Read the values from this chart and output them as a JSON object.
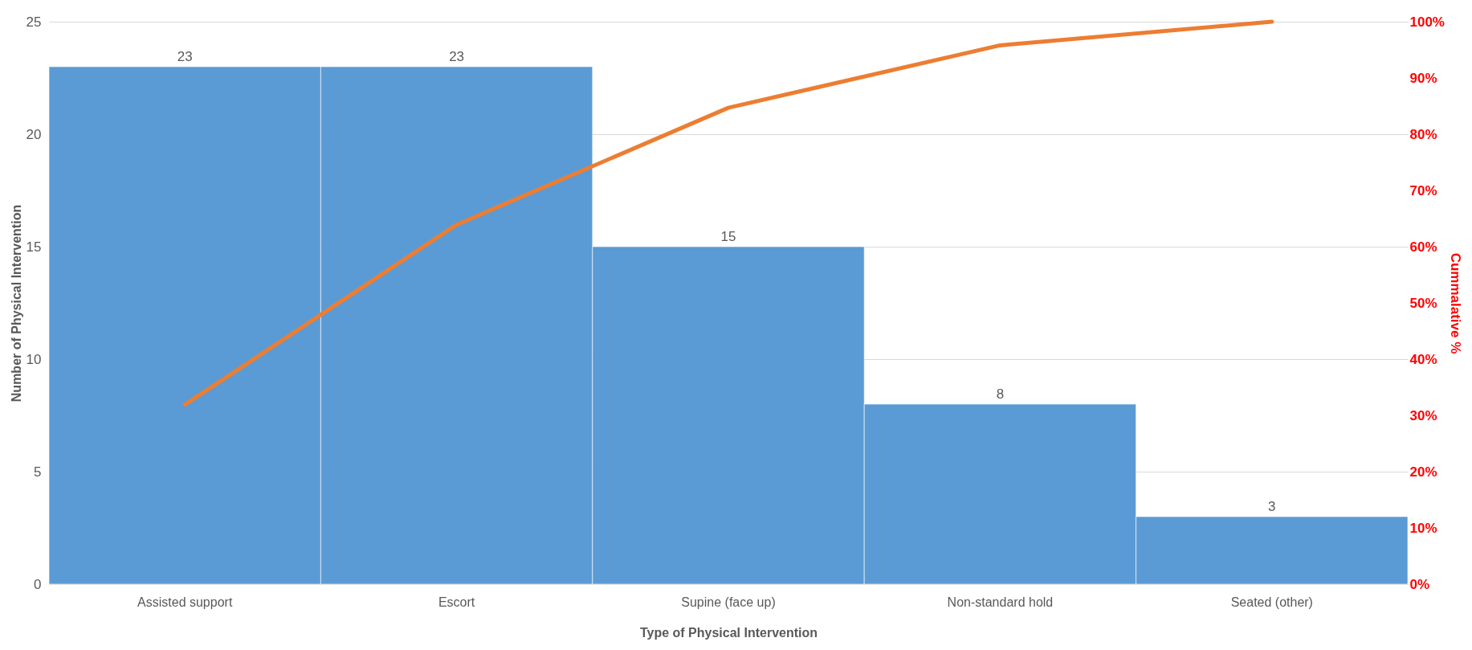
{
  "chart_data": {
    "type": "bar",
    "xlabel": "Type of Physical Intervention",
    "ylabel": "Number of Physical Intervention",
    "y2label": "Cummalative %",
    "categories": [
      "Assisted support",
      "Escort",
      "Supine (face up)",
      "Non-standard hold",
      "Seated (other)"
    ],
    "series": [
      {
        "color": "#5b9bd5",
        "values": [
          23,
          23,
          15,
          8,
          3
        ],
        "value_labels": [
          "23",
          "23",
          "15",
          "8",
          "3"
        ]
      },
      {
        "type": "line",
        "axis": "y2",
        "color": "#ed7d31",
        "values": [
          31.9,
          63.9,
          84.7,
          95.8,
          100
        ]
      }
    ],
    "ylim": [
      0,
      25
    ],
    "yticks": [
      0,
      5,
      10,
      15,
      20,
      25
    ],
    "y2lim": [
      0,
      100
    ],
    "y2ticks": [
      {
        "value": 0,
        "label": "0%"
      },
      {
        "value": 10,
        "label": "10%"
      },
      {
        "value": 20,
        "label": "20%"
      },
      {
        "value": 30,
        "label": "30%"
      },
      {
        "value": 40,
        "label": "40%"
      },
      {
        "value": 50,
        "label": "50%"
      },
      {
        "value": 60,
        "label": "60%"
      },
      {
        "value": 70,
        "label": "70%"
      },
      {
        "value": 80,
        "label": "80%"
      },
      {
        "value": 90,
        "label": "90%"
      },
      {
        "value": 100,
        "label": "100%"
      }
    ],
    "grid": "y",
    "marker": "none",
    "line_style": "solid"
  }
}
